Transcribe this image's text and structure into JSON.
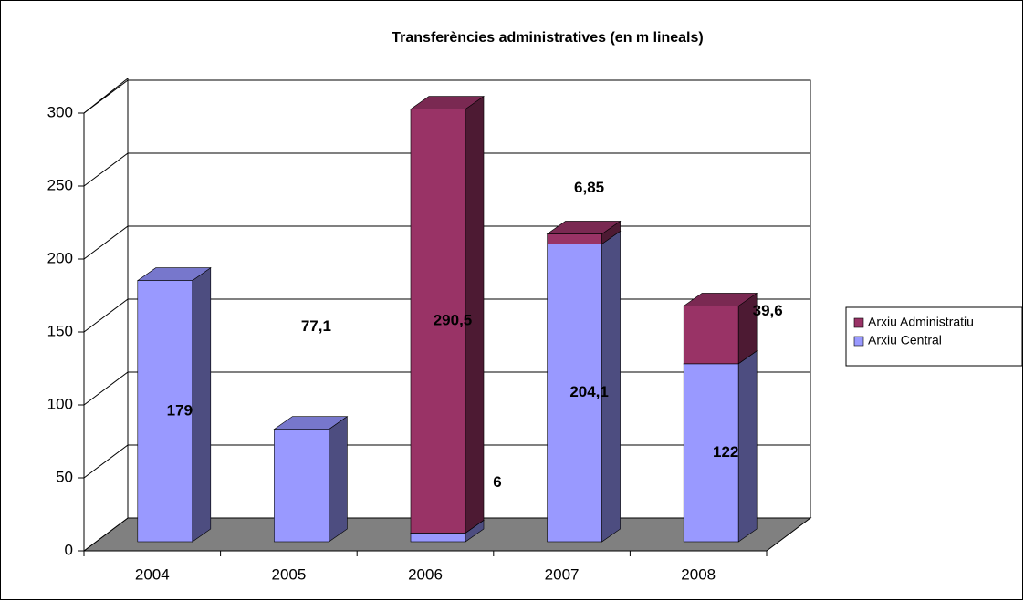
{
  "chart_data": {
    "type": "bar3d_stacked",
    "title": "Transferències administratives (en m lineals)",
    "categories": [
      "2004",
      "2005",
      "2006",
      "2007",
      "2008"
    ],
    "series": [
      {
        "name": "Arxiu Central",
        "color": "#9999ff",
        "values": [
          179,
          77.1,
          6,
          204.1,
          122
        ],
        "value_labels": [
          "179",
          "77,1",
          "6",
          "204,1",
          "122"
        ]
      },
      {
        "name": "Arxiu Administratiu",
        "color": "#993366",
        "values": [
          null,
          null,
          290.5,
          6.85,
          39.6
        ],
        "value_labels": [
          null,
          null,
          "290,5",
          "6,85",
          "39,6"
        ]
      }
    ],
    "ylim": [
      0,
      300
    ],
    "yticks": [
      0,
      50,
      100,
      150,
      200,
      250,
      300
    ],
    "grid": true,
    "legend": "right"
  }
}
